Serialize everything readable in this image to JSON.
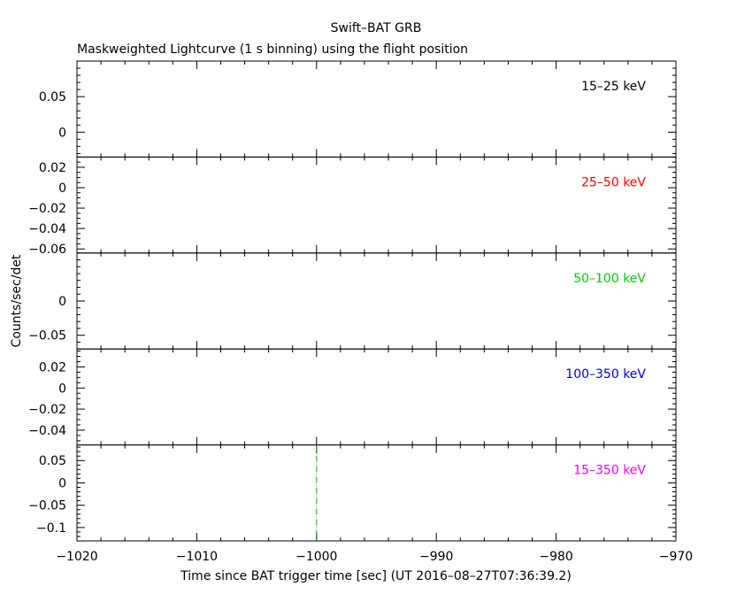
{
  "chart_data": {
    "type": "line",
    "title": "Swift–BAT GRB",
    "subtitle": "Maskweighted Lightcurve (1 s binning) using the flight position",
    "xlabel": "Time since BAT trigger time [sec] (UT 2016–08–27T07:36:39.2)",
    "ylabel": "Counts/sec/det",
    "xlim": [
      -1020,
      -970
    ],
    "x_major_ticks": [
      -1020,
      -1010,
      -1000,
      -990,
      -980,
      -970
    ],
    "x_tick_labels": [
      "−1020",
      "−1010",
      "−1000",
      "−990",
      "−980",
      "−970"
    ],
    "x_minor_step": 2,
    "grid": false,
    "panels": [
      {
        "band": "15–25 keV",
        "color": "#000000",
        "ylim": [
          -0.035,
          0.1
        ],
        "y_major_ticks": [
          0,
          0.05
        ],
        "y_tick_labels": [
          "0",
          "0.05"
        ],
        "y_minor_step": 0.01,
        "series": []
      },
      {
        "band": "25–50 keV",
        "color": "#ff0000",
        "ylim": [
          -0.064,
          0.03
        ],
        "y_major_ticks": [
          -0.06,
          -0.04,
          -0.02,
          0,
          0.02
        ],
        "y_tick_labels": [
          "−0.06",
          "−0.04",
          "−0.02",
          "0",
          "0.02"
        ],
        "y_minor_step": 0.005,
        "series": []
      },
      {
        "band": "50–100 keV",
        "color": "#00cc00",
        "ylim": [
          -0.07,
          0.07
        ],
        "y_major_ticks": [
          -0.05,
          0
        ],
        "y_tick_labels": [
          "−0.05",
          "0"
        ],
        "y_minor_step": 0.01,
        "series": []
      },
      {
        "band": "100–350 keV",
        "color": "#0000cc",
        "ylim": [
          -0.054,
          0.037
        ],
        "y_major_ticks": [
          -0.04,
          -0.02,
          0,
          0.02
        ],
        "y_tick_labels": [
          "−0.04",
          "−0.02",
          "0",
          "0.02"
        ],
        "y_minor_step": 0.005,
        "series": []
      },
      {
        "band": "15–350 keV",
        "color": "#ee00ee",
        "ylim": [
          -0.13,
          0.085
        ],
        "y_major_ticks": [
          -0.1,
          -0.05,
          0,
          0.05
        ],
        "y_tick_labels": [
          "−0.1",
          "−0.05",
          "0",
          "0.05"
        ],
        "y_minor_step": 0.01,
        "series": [],
        "markers": [
          {
            "x": -1000,
            "color": "#00aa00",
            "style": "dash-dot"
          }
        ]
      }
    ]
  }
}
